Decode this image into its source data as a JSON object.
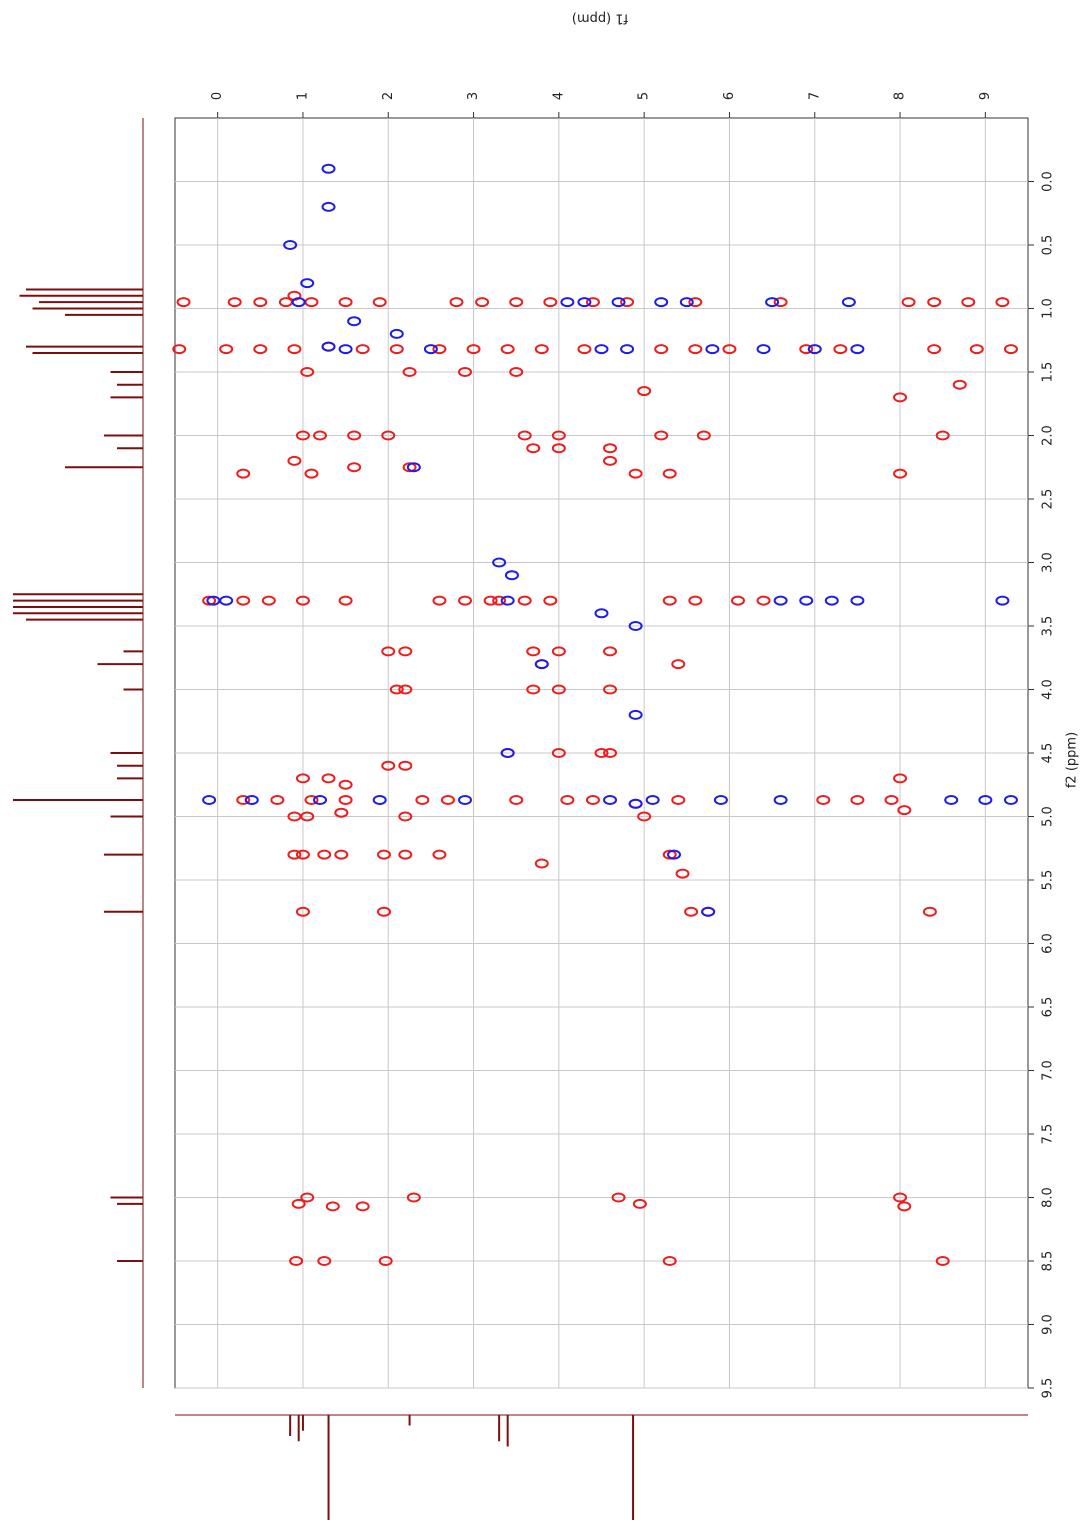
{
  "chart_data": {
    "type": "scatter",
    "x_label": "f1 (ppm)",
    "y_label": "f2 (ppm)",
    "xlim": [
      -0.5,
      9.5
    ],
    "ylim": [
      9.5,
      -0.5
    ],
    "xticks": [
      0,
      1,
      2,
      3,
      4,
      5,
      6,
      7,
      8,
      9
    ],
    "yticks": [
      {
        "value": 0,
        "label": "0.0"
      },
      0.5,
      {
        "value": 1,
        "label": "1.0"
      },
      1.5,
      {
        "value": 2,
        "label": "2.0"
      },
      2.5,
      {
        "value": 3,
        "label": "3.0"
      },
      3.5,
      {
        "value": 4,
        "label": "4.0"
      },
      4.5,
      {
        "value": 5,
        "label": "5.0"
      },
      5.5,
      {
        "value": 6,
        "label": "6.0"
      },
      6.5,
      {
        "value": 7,
        "label": "7.0"
      },
      7.5,
      {
        "value": 8,
        "label": "8.0"
      },
      8.5,
      {
        "value": 9,
        "label": "9.0"
      },
      9.5
    ],
    "grid": true,
    "series": [
      {
        "color": "#ee1c1c",
        "x": [
          0.9,
          1.3,
          2.0,
          2.25,
          3.3,
          3.7,
          4.0,
          4.5,
          4.9,
          5.0,
          5.3,
          5.45,
          5.75,
          8.0,
          8.5,
          1.05,
          0.95,
          1.35,
          1.7,
          2.3,
          4.7,
          4.95,
          8.05,
          0.92,
          1.25,
          1.97,
          5.3,
          1.0,
          1.95,
          5.55,
          8.35,
          0.9,
          1.0,
          1.25,
          1.45,
          1.95,
          2.2,
          2.6,
          3.8,
          0.9,
          1.05,
          1.45,
          2.2,
          8.05,
          1.0,
          1.3,
          1.5,
          2.0,
          2.2,
          8.0,
          2.0,
          2.2,
          4.0,
          4.6,
          3.8,
          5.4,
          2.1,
          2.2,
          3.7,
          4.6,
          3.4,
          4.0,
          4.6,
          1.0,
          1.2,
          1.6,
          3.6,
          4.0,
          4.6,
          5.2,
          5.7,
          8.5,
          0.3,
          0.9,
          1.1,
          1.6,
          3.7,
          4.0,
          4.6,
          4.9,
          5.3,
          8.0,
          1.05,
          2.25,
          2.9,
          3.5,
          8.0,
          8.7,
          5.0,
          -0.4,
          0.2,
          0.5,
          0.8,
          1.1,
          1.5,
          1.9,
          2.8,
          3.1,
          3.5,
          3.9,
          4.4,
          4.8,
          5.6,
          6.6,
          8.1,
          8.4,
          8.8,
          9.2,
          -0.45,
          0.1,
          0.5,
          0.9,
          1.7,
          2.1,
          2.6,
          3.0,
          3.4,
          3.8,
          4.3,
          5.2,
          5.6,
          6.0,
          6.9,
          7.3,
          8.4,
          8.9,
          9.3,
          -0.1,
          0.3,
          0.6,
          1.0,
          1.5,
          2.6,
          2.9,
          3.2,
          3.6,
          3.9,
          5.3,
          5.6,
          6.1,
          6.4,
          0.3,
          0.7,
          1.1,
          1.5,
          2.4,
          2.7,
          3.5,
          4.1,
          4.4,
          5.4,
          7.1,
          7.5,
          7.9
        ],
        "values": [
          0.9,
          1.3,
          2.0,
          2.25,
          3.3,
          3.7,
          4.0,
          4.5,
          4.9,
          5.0,
          5.3,
          5.45,
          5.75,
          8.0,
          8.5,
          8.0,
          8.05,
          8.07,
          8.07,
          8.0,
          8.0,
          8.05,
          8.07,
          8.5,
          8.5,
          8.5,
          8.5,
          5.75,
          5.75,
          5.75,
          5.75,
          5.3,
          5.3,
          5.3,
          5.3,
          5.3,
          5.3,
          5.3,
          5.37,
          5.0,
          5.0,
          4.97,
          5.0,
          4.95,
          4.7,
          4.7,
          4.75,
          4.6,
          4.6,
          4.7,
          3.7,
          3.7,
          3.7,
          3.7,
          3.8,
          3.8,
          4.0,
          4.0,
          4.0,
          4.0,
          4.5,
          4.5,
          4.5,
          2.0,
          2.0,
          2.0,
          2.0,
          2.0,
          2.1,
          2.0,
          2.0,
          2.0,
          2.3,
          2.2,
          2.3,
          2.25,
          2.1,
          2.1,
          2.2,
          2.3,
          2.3,
          2.3,
          1.5,
          1.5,
          1.5,
          1.5,
          1.7,
          1.6,
          1.65,
          0.95,
          0.95,
          0.95,
          0.95,
          0.95,
          0.95,
          0.95,
          0.95,
          0.95,
          0.95,
          0.95,
          0.95,
          0.95,
          0.95,
          0.95,
          0.95,
          0.95,
          0.95,
          0.95,
          1.32,
          1.32,
          1.32,
          1.32,
          1.32,
          1.32,
          1.32,
          1.32,
          1.32,
          1.32,
          1.32,
          1.32,
          1.32,
          1.32,
          1.32,
          1.32,
          1.32,
          1.32,
          1.32,
          3.3,
          3.3,
          3.3,
          3.3,
          3.3,
          3.3,
          3.3,
          3.3,
          3.3,
          3.3,
          3.3,
          3.3,
          3.3,
          3.3,
          4.87,
          4.87,
          4.87,
          4.87,
          4.87,
          4.87,
          4.87,
          4.87,
          4.87,
          4.87,
          4.87,
          4.87,
          4.87
        ]
      },
      {
        "color": "#1c1cee",
        "x": [
          0.85,
          1.05,
          1.3,
          1.3,
          0.95,
          1.3,
          1.6,
          4.1,
          4.3,
          4.7,
          5.2,
          5.5,
          6.5,
          7.4,
          1.5,
          2.5,
          4.5,
          4.8,
          5.8,
          6.4,
          7.0,
          7.5,
          -0.05,
          0.1,
          3.4,
          6.6,
          6.9,
          7.2,
          7.5,
          9.2,
          3.3,
          3.45,
          3.4,
          4.5,
          4.9,
          4.9,
          4.9,
          5.35,
          5.75,
          3.8,
          2.3,
          2.1,
          -0.1,
          0.4,
          1.2,
          1.9,
          2.9,
          4.6,
          5.1,
          5.9,
          6.6,
          8.6,
          9.0,
          9.3
        ],
        "values": [
          0.5,
          0.8,
          0.2,
          -0.1,
          0.95,
          1.3,
          1.1,
          0.95,
          0.95,
          0.95,
          0.95,
          0.95,
          0.95,
          0.95,
          1.32,
          1.32,
          1.32,
          1.32,
          1.32,
          1.32,
          1.32,
          1.32,
          3.3,
          3.3,
          3.3,
          3.3,
          3.3,
          3.3,
          3.3,
          3.3,
          3.0,
          3.1,
          4.5,
          3.4,
          4.9,
          3.5,
          4.2,
          5.3,
          5.75,
          3.8,
          2.25,
          1.2,
          4.87,
          4.87,
          4.87,
          4.87,
          4.87,
          4.87,
          4.87,
          4.87,
          4.87,
          4.87,
          4.87,
          4.87
        ]
      }
    ],
    "projections": {
      "f2": {
        "color": "#7a0f0f",
        "x": [
          0.85,
          0.9,
          0.95,
          1.0,
          1.05,
          1.3,
          1.35,
          1.5,
          1.6,
          1.7,
          2.0,
          2.1,
          2.25,
          3.25,
          3.3,
          3.35,
          3.4,
          3.45,
          3.7,
          3.8,
          4.0,
          4.5,
          4.6,
          4.7,
          4.87,
          5.0,
          5.3,
          5.75,
          8.0,
          8.05,
          8.5
        ],
        "values": [
          90,
          95,
          80,
          85,
          60,
          90,
          85,
          25,
          20,
          25,
          30,
          20,
          60,
          100,
          100,
          100,
          100,
          90,
          15,
          35,
          15,
          25,
          20,
          20,
          100,
          25,
          30,
          30,
          25,
          20,
          20
        ]
      },
      "f1": {
        "color": "#7a0f0f",
        "x": [
          0.85,
          0.95,
          1.0,
          1.3,
          2.25,
          3.3,
          3.4,
          4.87
        ],
        "values": [
          20,
          25,
          15,
          100,
          10,
          25,
          30,
          100
        ]
      }
    }
  }
}
